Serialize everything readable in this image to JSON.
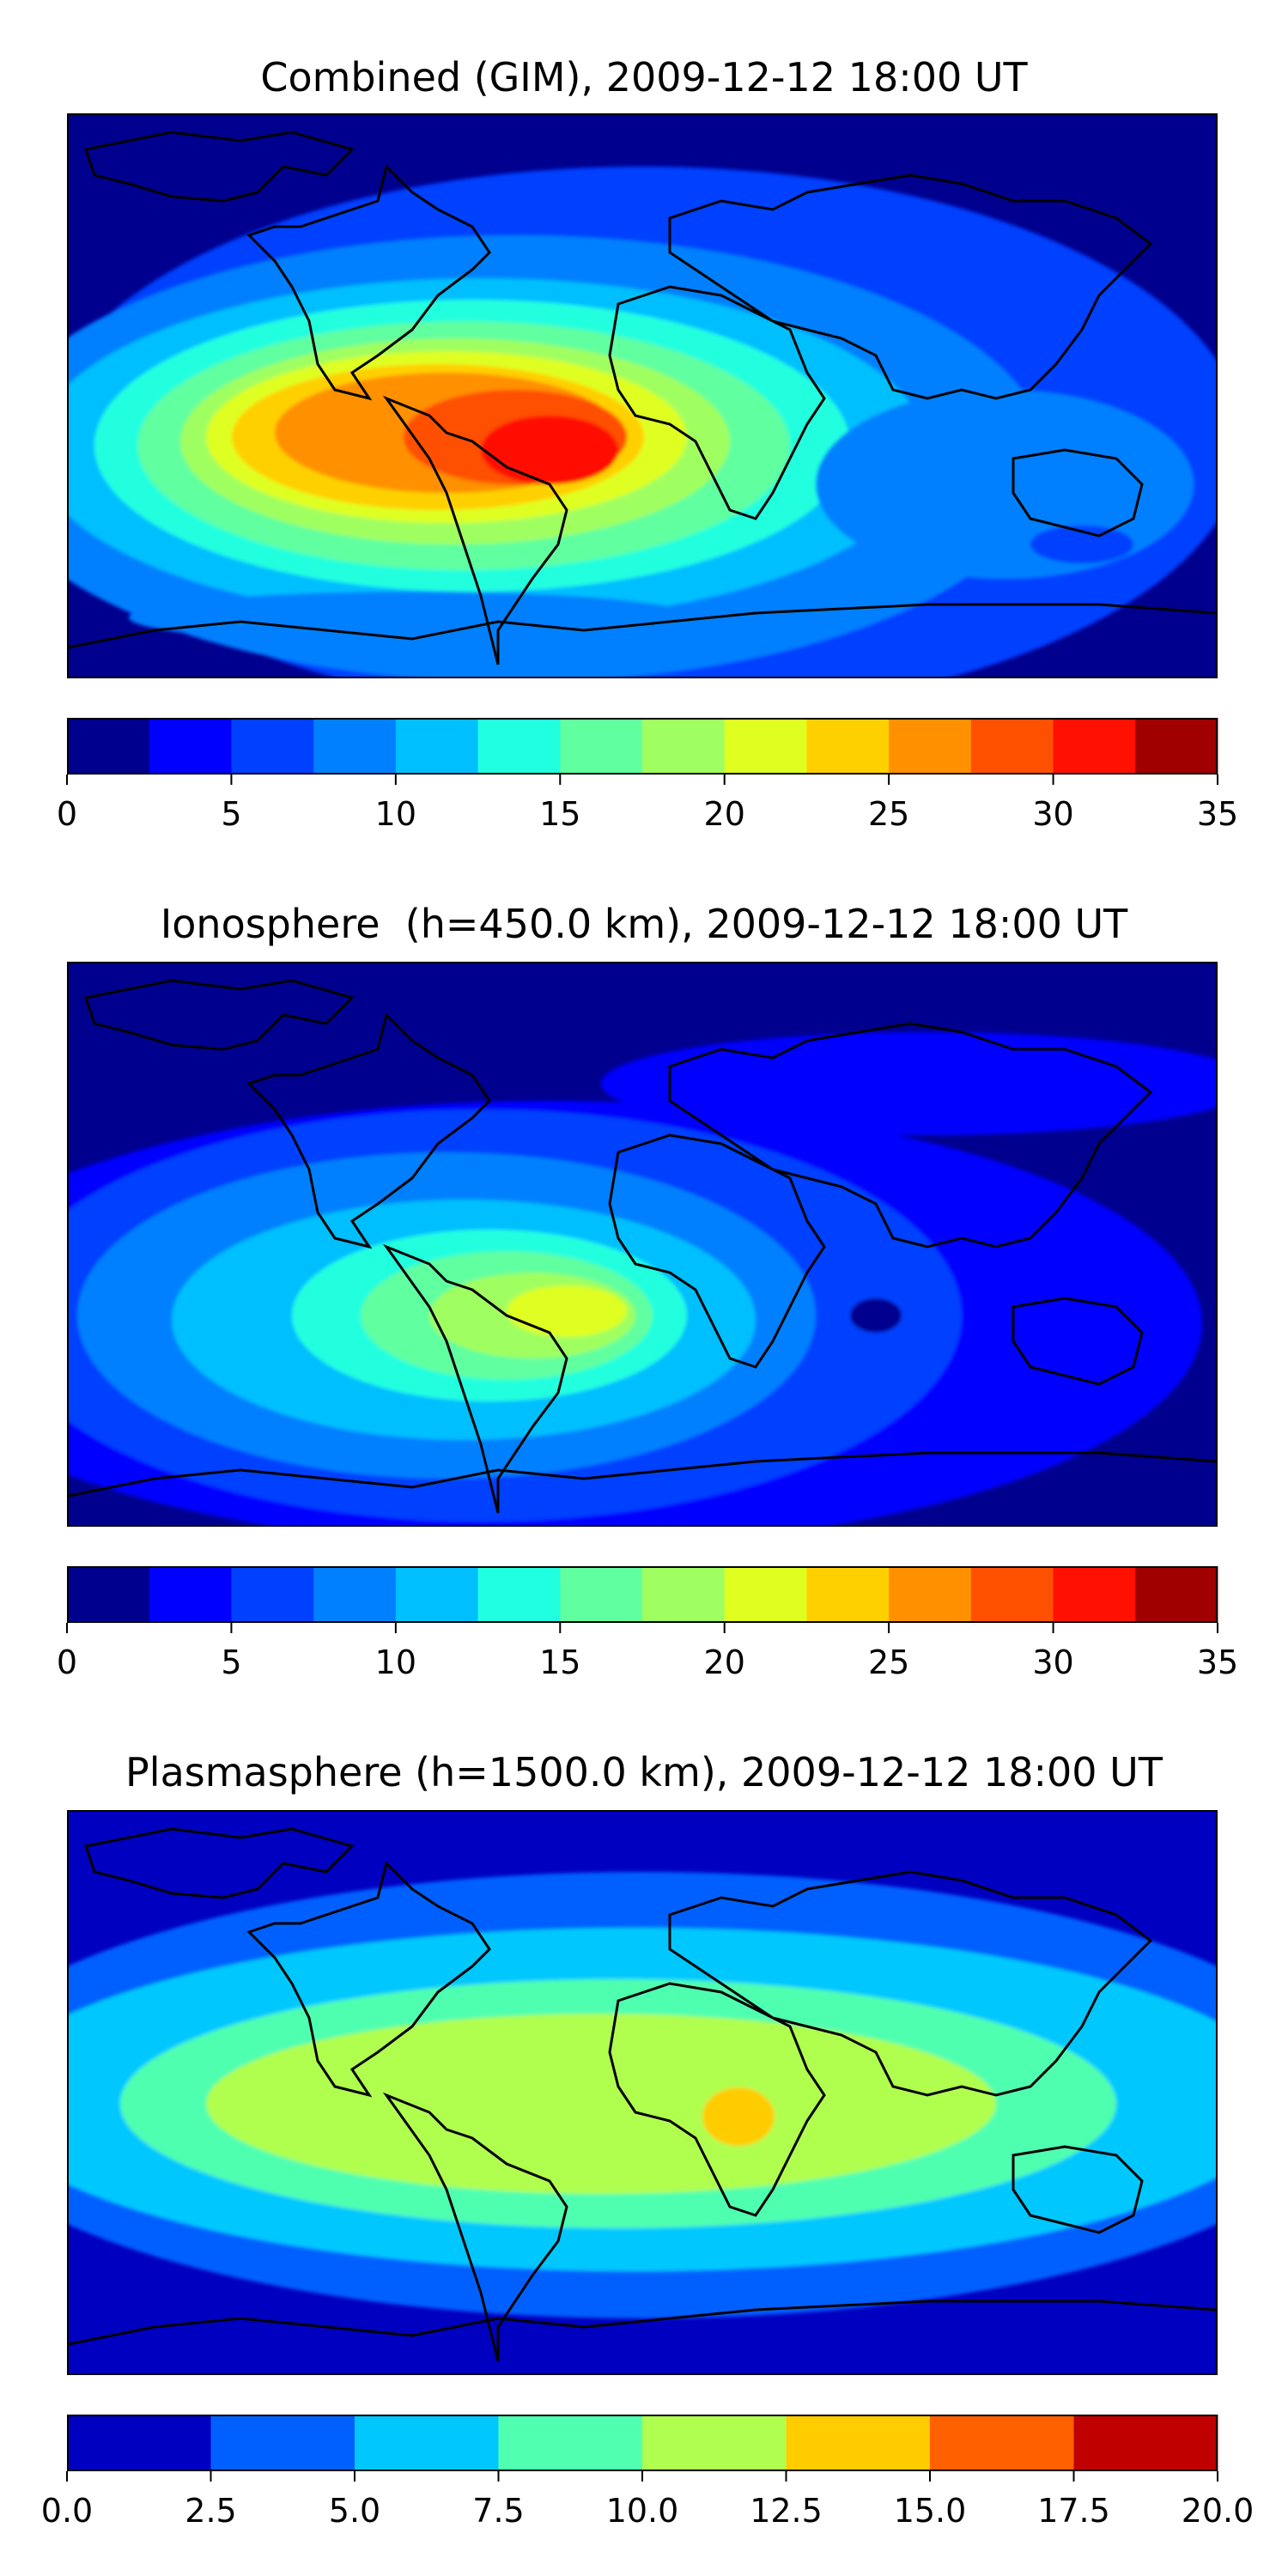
{
  "panels": [
    {
      "title": "Combined (GIM), 2009-12-12 18:00 UT",
      "colorbar": {
        "min": 0,
        "max": 35,
        "colors": [
          "#00008f",
          "#0000ff",
          "#0040ff",
          "#0080ff",
          "#00bfff",
          "#20ffdf",
          "#60ffa0",
          "#a0ff60",
          "#dfff20",
          "#ffd000",
          "#ff9000",
          "#ff5000",
          "#ff1000",
          "#a00000"
        ],
        "ticks": [
          "0",
          "5",
          "10",
          "15",
          "20",
          "25",
          "30",
          "35"
        ]
      }
    },
    {
      "title": "Ionosphere  (h=450.0 km), 2009-12-12 18:00 UT",
      "colorbar": {
        "min": 0,
        "max": 35,
        "colors": [
          "#00008f",
          "#0000ff",
          "#0040ff",
          "#0080ff",
          "#00bfff",
          "#20ffdf",
          "#60ffa0",
          "#a0ff60",
          "#dfff20",
          "#ffd000",
          "#ff9000",
          "#ff5000",
          "#ff1000",
          "#a00000"
        ],
        "ticks": [
          "0",
          "5",
          "10",
          "15",
          "20",
          "25",
          "30",
          "35"
        ]
      }
    },
    {
      "title": "Plasmasphere (h=1500.0 km), 2009-12-12 18:00 UT",
      "colorbar": {
        "min": 0,
        "max": 20,
        "colors": [
          "#0000c0",
          "#0060ff",
          "#00c8ff",
          "#50ffb0",
          "#b0ff50",
          "#ffcc00",
          "#ff6000",
          "#c00000"
        ],
        "ticks": [
          "0.0",
          "2.5",
          "5.0",
          "7.5",
          "10.0",
          "12.5",
          "15.0",
          "17.5",
          "20.0"
        ]
      }
    }
  ]
}
